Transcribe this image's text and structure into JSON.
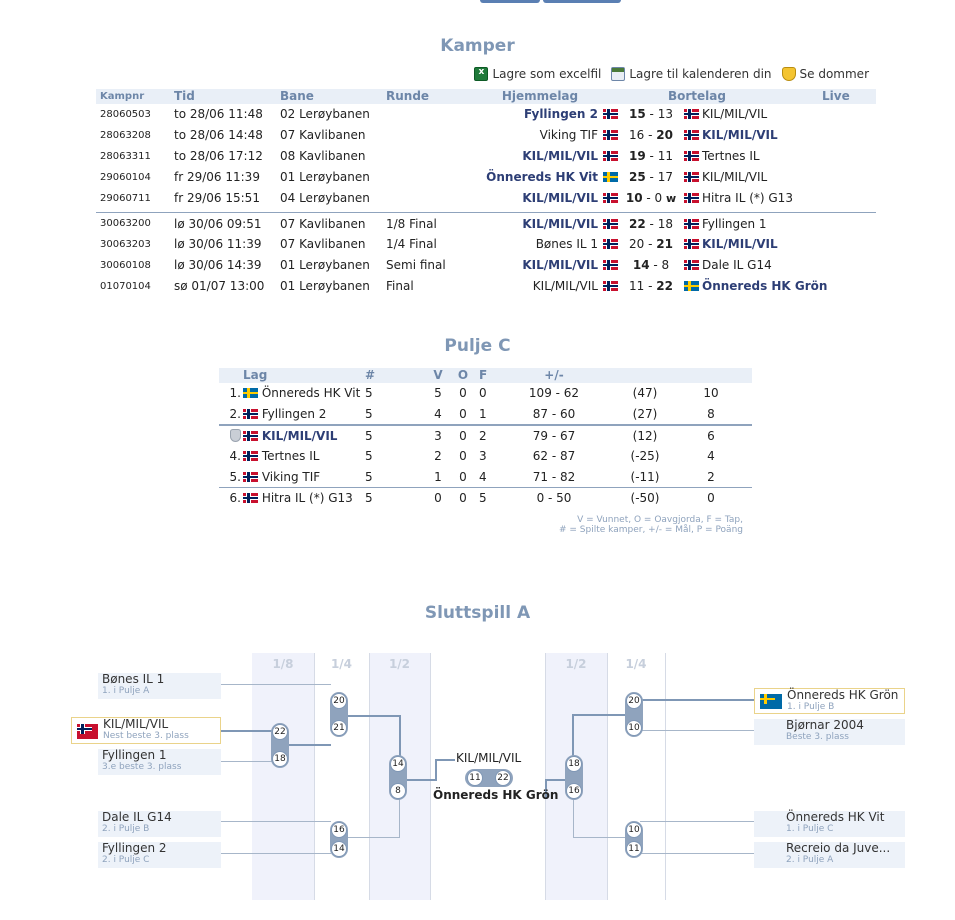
{
  "kamper": {
    "title": "Kamper",
    "actions": {
      "excel": "Lagre som excelfil",
      "calendar": "Lagre til kalenderen din",
      "referee": "Se dommer"
    },
    "headers": [
      "Kampnr",
      "Tid",
      "Bane",
      "Runde",
      "Hjemmelag",
      "Bortelag",
      "Live"
    ],
    "rows": [
      {
        "nr": "28060503",
        "tid": "to 28/06 11:48",
        "bane": "02 Lerøybanen",
        "runde": "",
        "hjem": "Fyllingen 2",
        "hflag": "no",
        "hs": "15",
        "bs": "13",
        "bflag": "no",
        "bort": "KIL/MIL/VIL",
        "w": "h",
        "hbold": true,
        "bbold": false,
        "wo": ""
      },
      {
        "nr": "28063208",
        "tid": "to 28/06 14:48",
        "bane": "07 Kavlibanen",
        "runde": "",
        "hjem": "Viking TIF",
        "hflag": "no",
        "hs": "16",
        "bs": "20",
        "bflag": "no",
        "bort": "KIL/MIL/VIL",
        "w": "b",
        "hbold": false,
        "bbold": true,
        "wo": ""
      },
      {
        "nr": "28063311",
        "tid": "to 28/06 17:12",
        "bane": "08 Kavlibanen",
        "runde": "",
        "hjem": "KIL/MIL/VIL",
        "hflag": "no",
        "hs": "19",
        "bs": "11",
        "bflag": "no",
        "bort": "Tertnes IL",
        "w": "h",
        "hbold": true,
        "bbold": false,
        "wo": ""
      },
      {
        "nr": "29060104",
        "tid": "fr 29/06 11:39",
        "bane": "01 Lerøybanen",
        "runde": "",
        "hjem": "Önnereds HK Vit",
        "hflag": "se",
        "hs": "25",
        "bs": "17",
        "bflag": "no",
        "bort": "KIL/MIL/VIL",
        "w": "h",
        "hbold": true,
        "bbold": false,
        "wo": ""
      },
      {
        "nr": "29060711",
        "tid": "fr 29/06 15:51",
        "bane": "04 Lerøybanen",
        "runde": "",
        "hjem": "KIL/MIL/VIL",
        "hflag": "no",
        "hs": "10",
        "bs": "0",
        "bflag": "no",
        "bort": "Hitra IL (*) G13",
        "w": "h",
        "hbold": true,
        "bbold": false,
        "wo": "w"
      },
      {
        "nr": "30063200",
        "tid": "lø 30/06 09:51",
        "bane": "07 Kavlibanen",
        "runde": "1/8 Final",
        "hjem": "KIL/MIL/VIL",
        "hflag": "no",
        "hs": "22",
        "bs": "18",
        "bflag": "no",
        "bort": "Fyllingen 1",
        "w": "h",
        "hbold": true,
        "bbold": false,
        "wo": ""
      },
      {
        "nr": "30063203",
        "tid": "lø 30/06 11:39",
        "bane": "07 Kavlibanen",
        "runde": "1/4 Final",
        "hjem": "Bønes IL 1",
        "hflag": "no",
        "hs": "20",
        "bs": "21",
        "bflag": "no",
        "bort": "KIL/MIL/VIL",
        "w": "b",
        "hbold": false,
        "bbold": true,
        "wo": ""
      },
      {
        "nr": "30060108",
        "tid": "lø 30/06 14:39",
        "bane": "01 Lerøybanen",
        "runde": "Semi final",
        "hjem": "KIL/MIL/VIL",
        "hflag": "no",
        "hs": "14",
        "bs": "8",
        "bflag": "no",
        "bort": "Dale IL G14",
        "w": "h",
        "hbold": true,
        "bbold": false,
        "wo": ""
      },
      {
        "nr": "01070104",
        "tid": "sø 01/07 13:00",
        "bane": "01 Lerøybanen",
        "runde": "Final",
        "hjem": "KIL/MIL/VIL",
        "hflag": "no",
        "hs": "11",
        "bs": "22",
        "bflag": "se",
        "bort": "Önnereds HK Grön",
        "w": "b",
        "hbold": false,
        "bbold": true,
        "wo": ""
      }
    ]
  },
  "pulje": {
    "title": "Pulje C",
    "headers": {
      "lag": "Lag",
      "n": "#",
      "v": "V",
      "o": "O",
      "f": "F",
      "goals": "+/-"
    },
    "rows": [
      {
        "pos": "1.",
        "flag": "se",
        "lag": "Önnereds HK Vit",
        "n": "5",
        "v": "5",
        "o": "0",
        "f": "0",
        "goals": "109 - 62",
        "diff": "(47)",
        "p": "10",
        "own": false
      },
      {
        "pos": "2.",
        "flag": "no",
        "lag": "Fyllingen 2",
        "n": "5",
        "v": "4",
        "o": "0",
        "f": "1",
        "goals": "87 - 60",
        "diff": "(27)",
        "p": "8",
        "own": false
      },
      {
        "pos": "",
        "flag": "no",
        "lag": "KIL/MIL/VIL",
        "n": "5",
        "v": "3",
        "o": "0",
        "f": "2",
        "goals": "79 - 67",
        "diff": "(12)",
        "p": "6",
        "own": true
      },
      {
        "pos": "4.",
        "flag": "no",
        "lag": "Tertnes IL",
        "n": "5",
        "v": "2",
        "o": "0",
        "f": "3",
        "goals": "62 - 87",
        "diff": "(-25)",
        "p": "4",
        "own": false
      },
      {
        "pos": "5.",
        "flag": "no",
        "lag": "Viking TIF",
        "n": "5",
        "v": "1",
        "o": "0",
        "f": "4",
        "goals": "71 - 82",
        "diff": "(-11)",
        "p": "2",
        "own": false
      },
      {
        "pos": "6.",
        "flag": "no",
        "lag": "Hitra IL (*) G13",
        "n": "5",
        "v": "0",
        "o": "0",
        "f": "5",
        "goals": "0 - 50",
        "diff": "(-50)",
        "p": "0",
        "own": false
      }
    ],
    "legend_1": "V = Vunnet, O = Oavgjorda, F = Tap,",
    "legend_2": "# = Spilte kamper, +/- = Mål, P = Poäng"
  },
  "sluttspill": {
    "title": "Sluttspill A",
    "rounds_left": [
      "1/8",
      "1/4",
      "1/2"
    ],
    "rounds_right": [
      "1/2",
      "1/4"
    ],
    "left_teams": [
      {
        "name": "Bønes IL 1",
        "sub": "1. i Pulje A"
      },
      {
        "name": "KIL/MIL/VIL",
        "sub": "Nest beste 3. plass"
      },
      {
        "name": "Fyllingen 1",
        "sub": "3.e beste 3. plass"
      },
      {
        "name": "Dale IL G14",
        "sub": "2. i Pulje B"
      },
      {
        "name": "Fyllingen 2",
        "sub": "2. i Pulje C"
      }
    ],
    "right_teams": [
      {
        "name": "Önnereds HK Grön",
        "sub": "1. i Pulje B"
      },
      {
        "name": "Bjørnar 2004",
        "sub": "Beste 3. plass"
      },
      {
        "name": "Önnereds HK Vit",
        "sub": "1. i Pulje C"
      },
      {
        "name": "Recreio da Juve...",
        "sub": "2. i Pulje A"
      }
    ],
    "scores": {
      "r8": [
        "22",
        "18"
      ],
      "q1": [
        "20",
        "21"
      ],
      "q2": [
        "16",
        "14"
      ],
      "s1": [
        "14",
        "8"
      ],
      "s2": [
        "18",
        "16"
      ],
      "q3": [
        "20",
        "10"
      ],
      "q4": [
        "10",
        "11"
      ],
      "final": [
        "11",
        "22"
      ]
    },
    "final_home": "KIL/MIL/VIL",
    "final_away": "Önnereds HK Grön"
  }
}
